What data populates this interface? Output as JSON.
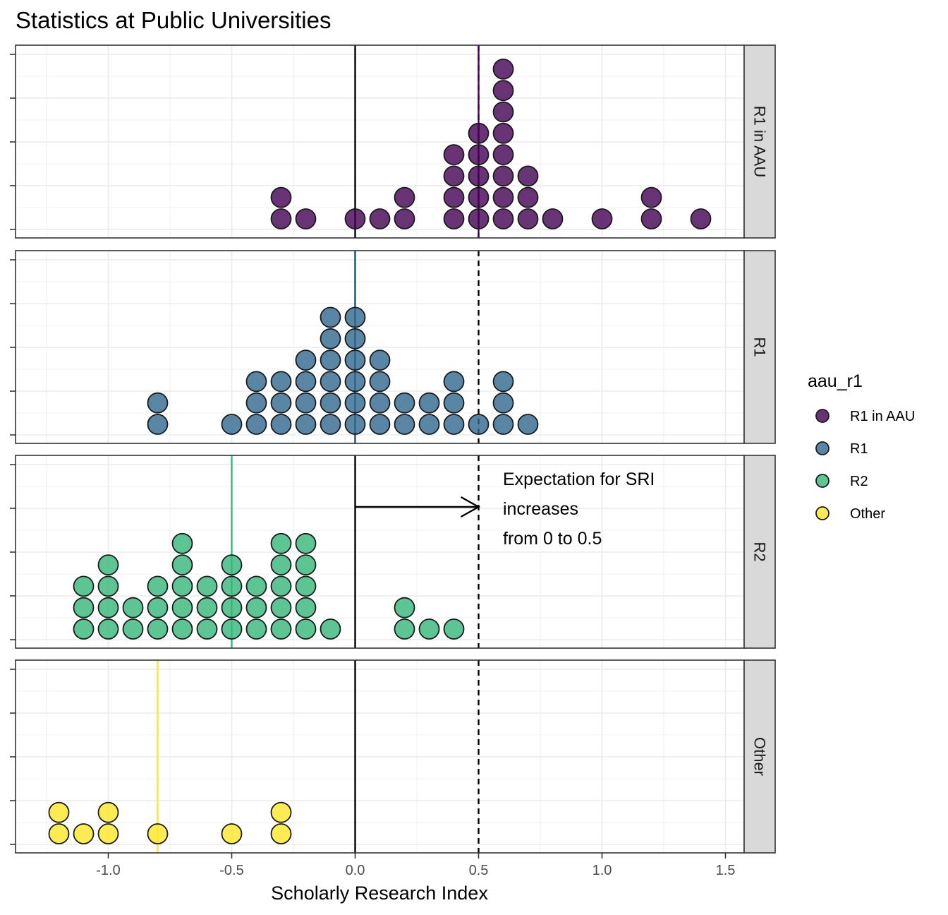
{
  "chart_data": {
    "type": "dotplot",
    "title": "Statistics at Public Universities",
    "xlabel": "Scholarly Research Index",
    "ylabel": "",
    "xlim": [
      -1.37,
      1.58
    ],
    "x_ticks": [
      -1.0,
      -0.5,
      0.0,
      0.5,
      1.0,
      1.5
    ],
    "x_tick_labels": [
      "-1.0",
      "-0.5",
      "0.0",
      "0.5",
      "1.0",
      "1.5"
    ],
    "grid": true,
    "reference_lines": {
      "solid_at": 0.0,
      "dashed_at": 0.5
    },
    "legend": {
      "title": "aau_r1",
      "position": "right",
      "entries": [
        {
          "label": "R1 in AAU",
          "color": "#440154"
        },
        {
          "label": "R1",
          "color": "#31688E"
        },
        {
          "label": "R2",
          "color": "#35B779"
        },
        {
          "label": "Other",
          "color": "#FDE725"
        }
      ]
    },
    "facets": [
      {
        "label": "R1 in AAU",
        "color": "#440154",
        "mean_line": 0.5,
        "stacks": [
          [
            -0.3,
            2
          ],
          [
            -0.2,
            1
          ],
          [
            0.0,
            1
          ],
          [
            0.1,
            1
          ],
          [
            0.2,
            2
          ],
          [
            0.4,
            4
          ],
          [
            0.5,
            5
          ],
          [
            0.6,
            8
          ],
          [
            0.7,
            3
          ],
          [
            0.8,
            1
          ],
          [
            1.0,
            1
          ],
          [
            1.2,
            2
          ],
          [
            1.4,
            1
          ]
        ]
      },
      {
        "label": "R1",
        "color": "#31688E",
        "mean_line": 0.0,
        "stacks": [
          [
            -0.8,
            2
          ],
          [
            -0.5,
            1
          ],
          [
            -0.4,
            3
          ],
          [
            -0.3,
            3
          ],
          [
            -0.2,
            4
          ],
          [
            -0.1,
            6
          ],
          [
            0.0,
            6
          ],
          [
            0.1,
            4
          ],
          [
            0.2,
            2
          ],
          [
            0.3,
            2
          ],
          [
            0.4,
            3
          ],
          [
            0.5,
            1
          ],
          [
            0.6,
            3
          ],
          [
            0.7,
            1
          ]
        ]
      },
      {
        "label": "R2",
        "color": "#35B779",
        "mean_line": -0.5,
        "stacks": [
          [
            -1.1,
            3
          ],
          [
            -1.0,
            4
          ],
          [
            -0.9,
            2
          ],
          [
            -0.8,
            3
          ],
          [
            -0.7,
            5
          ],
          [
            -0.6,
            3
          ],
          [
            -0.5,
            4
          ],
          [
            -0.4,
            3
          ],
          [
            -0.3,
            5
          ],
          [
            -0.2,
            5
          ],
          [
            -0.1,
            1
          ],
          [
            0.2,
            2
          ],
          [
            0.3,
            1
          ],
          [
            0.4,
            1
          ]
        ]
      },
      {
        "label": "Other",
        "color": "#FDE725",
        "mean_line": -0.8,
        "stacks": [
          [
            -1.2,
            2
          ],
          [
            -1.1,
            1
          ],
          [
            -1.0,
            2
          ],
          [
            -0.8,
            1
          ],
          [
            -0.5,
            1
          ],
          [
            -0.3,
            2
          ]
        ]
      }
    ],
    "annotation": {
      "facet": "R2",
      "arrow_from": 0.0,
      "arrow_to": 0.5,
      "lines": [
        "Expectation for SRI",
        "increases",
        "from 0 to 0.5"
      ]
    }
  }
}
